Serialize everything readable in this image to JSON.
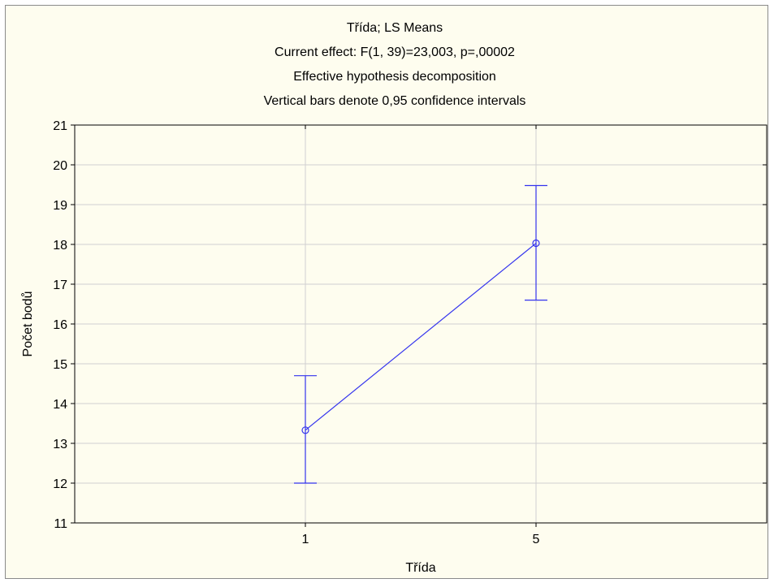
{
  "chart_data": {
    "type": "line",
    "title_lines": [
      "Třída; LS Means",
      "Current effect: F(1, 39)=23,003, p=,00002",
      "Effective hypothesis decomposition",
      "Vertical bars denote 0,95 confidence intervals"
    ],
    "xlabel": "Třída",
    "ylabel": "Počet bodů",
    "categories": [
      "1",
      "5"
    ],
    "ylim": [
      11,
      21
    ],
    "yticks": [
      "11",
      "12",
      "13",
      "14",
      "15",
      "16",
      "17",
      "18",
      "19",
      "20",
      "21"
    ],
    "series": [
      {
        "values": [
          13.33,
          18.03
        ],
        "ci_lower": [
          12.0,
          16.6
        ],
        "ci_upper": [
          14.7,
          19.48
        ]
      }
    ],
    "grid": true,
    "colors": {
      "series": "#3333ee",
      "grid": "#d0d0d0",
      "background": "#fefdef"
    }
  }
}
